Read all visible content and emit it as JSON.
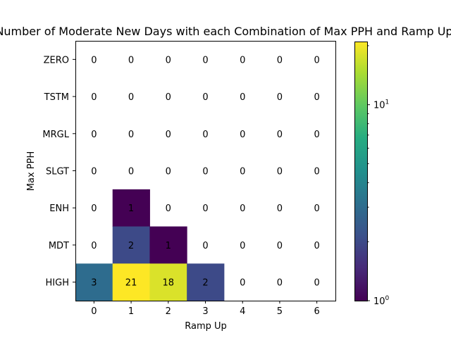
{
  "chart_data": {
    "type": "heatmap",
    "title": "Number of Moderate New Days with each Combination of Max PPH and Ramp Up",
    "xlabel": "Ramp Up",
    "ylabel": "Max PPH",
    "x_categories": [
      "0",
      "1",
      "2",
      "3",
      "4",
      "5",
      "6"
    ],
    "y_categories": [
      "ZERO",
      "TSTM",
      "MRGL",
      "SLGT",
      "ENH",
      "MDT",
      "HIGH"
    ],
    "values": [
      [
        0,
        0,
        0,
        0,
        0,
        0,
        0
      ],
      [
        0,
        0,
        0,
        0,
        0,
        0,
        0
      ],
      [
        0,
        0,
        0,
        0,
        0,
        0,
        0
      ],
      [
        0,
        0,
        0,
        0,
        0,
        0,
        0
      ],
      [
        0,
        1,
        0,
        0,
        0,
        0,
        0
      ],
      [
        0,
        2,
        1,
        0,
        0,
        0,
        0
      ],
      [
        3,
        21,
        18,
        2,
        0,
        0,
        0
      ]
    ],
    "colorscale": "viridis",
    "color_scale_type": "log",
    "zero_cells": "blank",
    "colorbar": {
      "range": [
        1,
        21
      ],
      "tick_labels": [
        {
          "value": 1,
          "base": "10",
          "exp": "0"
        },
        {
          "value": 10,
          "base": "10",
          "exp": "1"
        }
      ]
    },
    "grid": false
  }
}
